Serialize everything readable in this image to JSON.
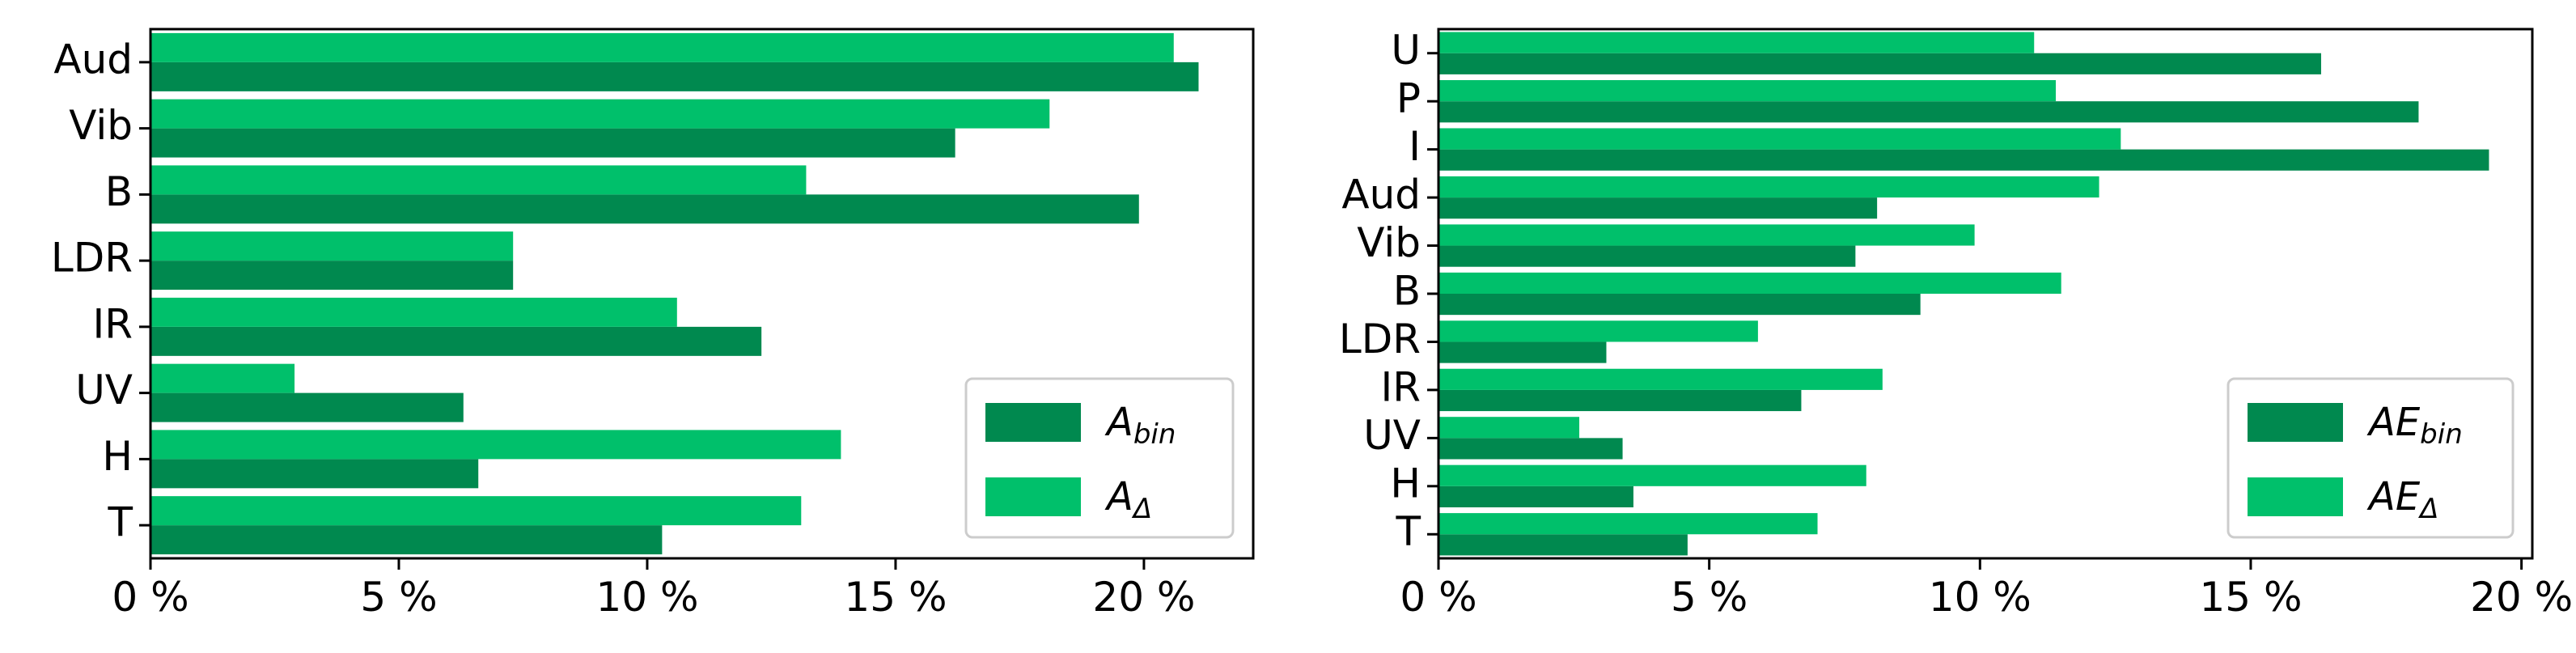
{
  "colors": {
    "bin": "#00894f",
    "delta": "#00c06b",
    "axis": "#000000",
    "legend_border": "#cccccc"
  },
  "chart_data": [
    {
      "type": "bar",
      "orientation": "horizontal",
      "categories": [
        "Aud",
        "Vib",
        "B",
        "LDR",
        "IR",
        "UV",
        "H",
        "T"
      ],
      "series": [
        {
          "name": "A_bin",
          "legend_base": "A",
          "legend_sub": "bin",
          "values": [
            21.1,
            16.2,
            19.9,
            7.3,
            12.3,
            6.3,
            6.6,
            10.3
          ]
        },
        {
          "name": "A_Δ",
          "legend_base": "A",
          "legend_sub": "Δ",
          "values": [
            20.6,
            18.1,
            13.2,
            7.3,
            10.6,
            2.9,
            13.9,
            13.1
          ]
        }
      ],
      "xticks": [
        "0 %",
        "5 %",
        "10 %",
        "15 %",
        "20 %"
      ],
      "xtick_values": [
        0,
        5,
        10,
        15,
        20
      ],
      "xlim": [
        0,
        22.2
      ],
      "grid": false,
      "legend_position": "lower-right"
    },
    {
      "type": "bar",
      "orientation": "horizontal",
      "categories": [
        "U",
        "P",
        "I",
        "Aud",
        "Vib",
        "B",
        "LDR",
        "IR",
        "UV",
        "H",
        "T"
      ],
      "series": [
        {
          "name": "AE_bin",
          "legend_base": "AE",
          "legend_sub": "bin",
          "values": [
            16.3,
            18.1,
            19.4,
            8.1,
            7.7,
            8.9,
            3.1,
            6.7,
            3.4,
            3.6,
            4.6
          ]
        },
        {
          "name": "AE_Δ",
          "legend_base": "AE",
          "legend_sub": "Δ",
          "values": [
            11.0,
            11.4,
            12.6,
            12.2,
            9.9,
            11.5,
            5.9,
            8.2,
            2.6,
            7.9,
            7.0
          ]
        }
      ],
      "xticks": [
        "0 %",
        "5 %",
        "10 %",
        "15 %",
        "20 %"
      ],
      "xtick_values": [
        0,
        5,
        10,
        15,
        20
      ],
      "xlim": [
        0,
        20.2
      ],
      "grid": false,
      "legend_position": "lower-right"
    }
  ]
}
